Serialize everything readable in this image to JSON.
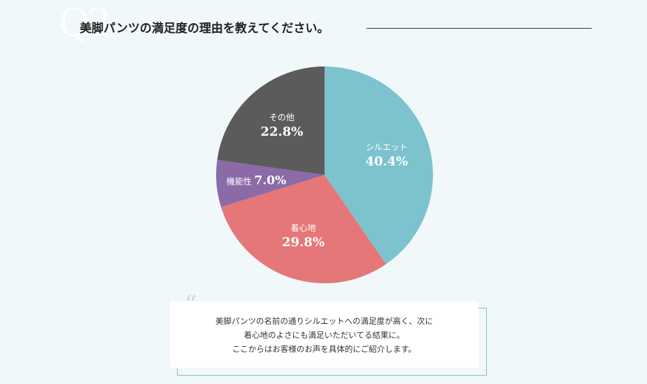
{
  "question": {
    "badge": "Q2",
    "title": "美脚パンツの満足度の理由を教えてください。"
  },
  "chart_data": {
    "type": "pie",
    "slices": [
      {
        "label": "シルエット",
        "value": 40.4,
        "display": "40.4%",
        "color": "#7cc3ce"
      },
      {
        "label": "着心地",
        "value": 29.8,
        "display": "29.8%",
        "color": "#e57778"
      },
      {
        "label": "機能性",
        "value": 7.0,
        "display": "7.0%",
        "color": "#8b6aa8"
      },
      {
        "label": "その他",
        "value": 22.8,
        "display": "22.8%",
        "color": "#5b5b5b"
      }
    ],
    "start": "12 o'clock",
    "direction": "clockwise"
  },
  "comment": {
    "quote_mark": "“",
    "lines": [
      "美脚パンツの名前の通りシルエットへの満足度が高く、次に",
      "着心地のよさにも満足いただいてる結果に。",
      "ここからはお客様のお声を具体的にご紹介します。"
    ]
  }
}
